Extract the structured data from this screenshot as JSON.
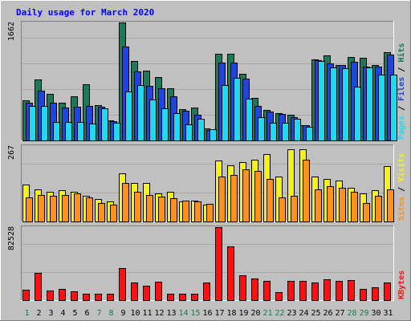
{
  "chart_data": {
    "type": "bar",
    "title": "Daily usage for March 2020",
    "days": [
      "1",
      "2",
      "3",
      "4",
      "5",
      "6",
      "7",
      "8",
      "9",
      "10",
      "11",
      "12",
      "13",
      "14",
      "15",
      "16",
      "17",
      "18",
      "19",
      "20",
      "21",
      "22",
      "23",
      "24",
      "25",
      "26",
      "27",
      "28",
      "29",
      "30",
      "31"
    ],
    "weekend_days": [
      "1",
      "7",
      "8",
      "14",
      "15",
      "21",
      "22",
      "28",
      "29"
    ],
    "panels": [
      {
        "id": "hits-files-pages",
        "max_label": "1662",
        "ymax": 1662,
        "series": [
          {
            "name": "Hits",
            "color": "#1a7a5a",
            "values": [
              560,
              860,
              660,
              530,
              620,
              790,
              500,
              285,
              1662,
              1115,
              980,
              890,
              730,
              445,
              460,
              170,
              1225,
              1225,
              940,
              600,
              425,
              385,
              360,
              220,
              1145,
              1200,
              1065,
              1175,
              1160,
              1065,
              1245
            ]
          },
          {
            "name": "Files",
            "color": "#1f45e0",
            "values": [
              530,
              700,
              530,
              460,
              480,
              490,
              470,
              275,
              1320,
              970,
              770,
              740,
              620,
              420,
              360,
              150,
              1100,
              1100,
              870,
              490,
              410,
              375,
              330,
              210,
              1130,
              1090,
              1060,
              1110,
              1045,
              1040,
              1205
            ]
          },
          {
            "name": "Pages",
            "color": "#22d8f0",
            "values": [
              490,
              490,
              265,
              260,
              255,
              240,
              450,
              250,
              690,
              780,
              580,
              450,
              380,
              230,
              300,
              155,
              780,
              885,
              590,
              330,
              250,
              250,
              300,
              190,
              1115,
              1025,
              1020,
              760,
              1025,
              930,
              930
            ]
          }
        ]
      },
      {
        "id": "sites-visits",
        "max_label": "267",
        "ymax": 267,
        "series": [
          {
            "name": "Visits",
            "color": "#f5f020",
            "values": [
              130,
              115,
              105,
              110,
              105,
              92,
              80,
              72,
              170,
              135,
              135,
              100,
              105,
              70,
              75,
              60,
              215,
              200,
              210,
              220,
              240,
              160,
              255,
              255,
              160,
              150,
              145,
              120,
              100,
              110,
              195
            ]
          },
          {
            "name": "Sites",
            "color": "#ff9020",
            "values": [
              85,
              93,
              92,
              95,
              100,
              85,
              65,
              60,
              135,
              105,
              95,
              87,
              82,
              75,
              70,
              62,
              160,
              165,
              185,
              180,
              150,
              85,
              90,
              220,
              115,
              125,
              120,
              105,
              65,
              90,
              115
            ]
          }
        ]
      },
      {
        "id": "kbytes",
        "max_label": "82528",
        "ymax": 82528,
        "series": [
          {
            "name": "KBytes",
            "color": "#ff1010",
            "values": [
              11500,
              30500,
              11000,
              12500,
              10000,
              7000,
              7500,
              7500,
              36500,
              19500,
              16000,
              20500,
              7500,
              7500,
              7000,
              20000,
              82528,
              60500,
              28000,
              24500,
              22000,
              9000,
              22000,
              22000,
              20000,
              23500,
              22000,
              22500,
              13000,
              14500,
              19500
            ]
          }
        ]
      }
    ]
  }
}
